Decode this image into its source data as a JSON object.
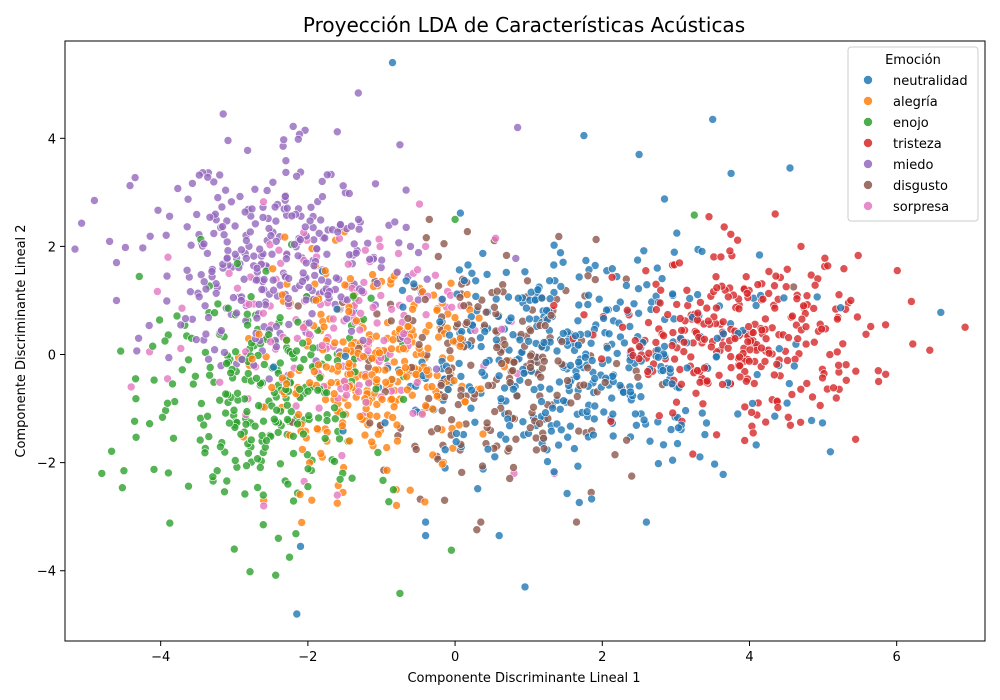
{
  "chart_data": {
    "type": "scatter",
    "title": "Proyección LDA de Características Acústicas",
    "xlabel": "Componente Discriminante Lineal 1",
    "ylabel": "Componente Discriminante Lineal 2",
    "xlim": [
      -5.3,
      7.2
    ],
    "ylim": [
      -5.3,
      5.8
    ],
    "xticks": [
      -4,
      -2,
      0,
      2,
      4,
      6
    ],
    "yticks": [
      -4,
      -2,
      0,
      2,
      4
    ],
    "grid": false,
    "legend": {
      "title": "Emoción",
      "placement": "top-right"
    },
    "series": [
      {
        "name": "neutralidad",
        "color": "#1f77b4",
        "clusters": [
          {
            "n": 420,
            "cx": 1.6,
            "cy": -0.1,
            "sx": 1.25,
            "sy": 1.0
          }
        ],
        "points": [
          [
            -0.85,
            5.4
          ],
          [
            3.5,
            4.35
          ],
          [
            1.75,
            4.05
          ],
          [
            2.5,
            3.7
          ],
          [
            3.75,
            3.35
          ],
          [
            4.55,
            3.45
          ],
          [
            6.6,
            0.78
          ],
          [
            5.1,
            -1.8
          ],
          [
            0.95,
            -4.3
          ],
          [
            -2.15,
            -4.8
          ],
          [
            -2.1,
            -3.55
          ],
          [
            -0.4,
            -3.1
          ],
          [
            -0.4,
            -3.35
          ],
          [
            0.6,
            -3.35
          ],
          [
            2.6,
            -3.1
          ]
        ]
      },
      {
        "name": "alegría",
        "color": "#ff7f0e",
        "clusters": [
          {
            "n": 300,
            "cx": -1.2,
            "cy": -0.4,
            "sx": 0.75,
            "sy": 0.9
          }
        ],
        "points": [
          [
            -1.6,
            -2.75
          ],
          [
            -0.8,
            -2.5
          ],
          [
            -2.6,
            -2.7
          ],
          [
            -1.0,
            1.35
          ]
        ]
      },
      {
        "name": "enojo",
        "color": "#2ca02c",
        "clusters": [
          {
            "n": 270,
            "cx": -2.5,
            "cy": -0.7,
            "sx": 0.85,
            "sy": 1.0
          }
        ],
        "points": [
          [
            -4.8,
            -2.2
          ],
          [
            -4.5,
            -2.15
          ],
          [
            -4.15,
            -1.28
          ],
          [
            -2.25,
            -3.75
          ],
          [
            -0.75,
            -4.42
          ],
          [
            -0.05,
            -3.62
          ],
          [
            3.25,
            2.58
          ],
          [
            -3.0,
            -3.6
          ],
          [
            -2.4,
            -3.4
          ],
          [
            0.0,
            2.5
          ]
        ]
      },
      {
        "name": "tristeza",
        "color": "#d62728",
        "clusters": [
          {
            "n": 300,
            "cx": 3.9,
            "cy": 0.25,
            "sx": 0.85,
            "sy": 0.75
          }
        ],
        "points": [
          [
            6.45,
            0.08
          ],
          [
            6.2,
            0.98
          ],
          [
            5.85,
            0.55
          ],
          [
            5.75,
            -0.3
          ],
          [
            4.05,
            -1.45
          ],
          [
            3.45,
            2.55
          ],
          [
            4.35,
            2.6
          ],
          [
            4.7,
            2.0
          ]
        ]
      },
      {
        "name": "miedo",
        "color": "#9467bd",
        "clusters": [
          {
            "n": 320,
            "cx": -2.4,
            "cy": 1.7,
            "sx": 0.9,
            "sy": 0.95
          }
        ],
        "points": [
          [
            -4.9,
            2.85
          ],
          [
            -3.15,
            4.45
          ],
          [
            -2.2,
            4.22
          ],
          [
            -1.6,
            4.12
          ],
          [
            -0.75,
            3.88
          ],
          [
            0.85,
            4.2
          ],
          [
            -4.6,
            1.7
          ],
          [
            -4.6,
            1.0
          ],
          [
            -4.3,
            0.3
          ]
        ]
      },
      {
        "name": "disgusto",
        "color": "#8c564b",
        "clusters": [
          {
            "n": 220,
            "cx": 0.6,
            "cy": -0.3,
            "sx": 0.9,
            "sy": 1.0
          }
        ],
        "points": [
          [
            -0.35,
            2.5
          ],
          [
            1.85,
            -2.55
          ],
          [
            1.65,
            -3.1
          ],
          [
            2.4,
            -2.25
          ],
          [
            0.35,
            -3.1
          ],
          [
            -0.15,
            2.05
          ],
          [
            4.6,
            1.25
          ]
        ]
      },
      {
        "name": "sorpresa",
        "color": "#e377c2",
        "clusters": [
          {
            "n": 140,
            "cx": -1.6,
            "cy": 0.7,
            "sx": 0.9,
            "sy": 0.9
          }
        ],
        "points": [
          [
            -4.4,
            -0.6
          ],
          [
            -4.15,
            0.05
          ],
          [
            -3.9,
            1.8
          ],
          [
            -2.6,
            -2.8
          ],
          [
            -1.6,
            -2.6
          ],
          [
            -2.05,
            -2.35
          ],
          [
            0.8,
            -2.2
          ],
          [
            1.35,
            -2.2
          ],
          [
            -0.4,
            2.0
          ],
          [
            0.55,
            2.15
          ]
        ]
      }
    ]
  }
}
